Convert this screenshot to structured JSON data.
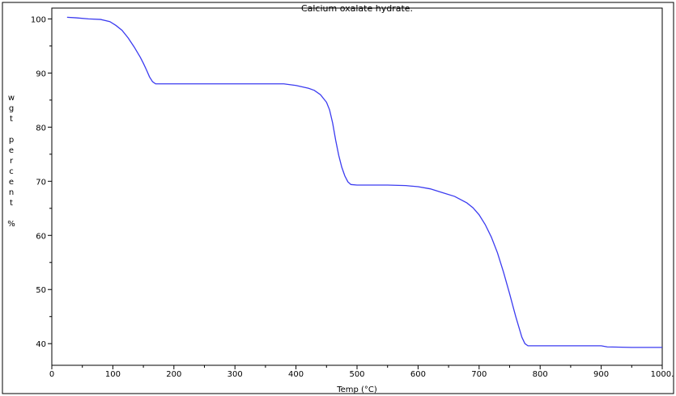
{
  "chart_data": {
    "type": "line",
    "title": "Calcium oxalate hydrate.",
    "xlabel": "Temp (°C)",
    "ylabel_chars": [
      "w",
      "g",
      "t",
      "",
      "p",
      "e",
      "r",
      "c",
      "e",
      "n",
      "t",
      "",
      "%"
    ],
    "xlim": [
      0,
      1000
    ],
    "ylim": [
      36,
      102
    ],
    "x_ticks": [
      0,
      100,
      200,
      300,
      400,
      500,
      600,
      700,
      800,
      900,
      1000
    ],
    "x_tick_labels": [
      "0",
      "100",
      "200",
      "300",
      "400",
      "500",
      "600",
      "700",
      "800",
      "900",
      "1000."
    ],
    "y_ticks": [
      40,
      50,
      60,
      70,
      80,
      90,
      100
    ],
    "y_tick_labels": [
      "40",
      "50",
      "60",
      "70",
      "80",
      "90",
      "100"
    ],
    "grid": false,
    "line_color": "#3b3bf0",
    "series": [
      {
        "x": [
          25,
          40,
          60,
          80,
          95,
          105,
          115,
          125,
          135,
          145,
          150,
          155,
          160,
          165,
          170,
          175,
          180,
          200,
          250,
          300,
          350,
          380,
          400,
          420,
          430,
          440,
          450,
          455,
          460,
          465,
          470,
          475,
          480,
          485,
          490,
          500,
          520,
          550,
          580,
          600,
          620,
          640,
          660,
          680,
          690,
          700,
          710,
          720,
          730,
          740,
          750,
          760,
          770,
          775,
          780,
          800,
          850,
          900,
          910,
          950,
          1000
        ],
        "y": [
          100.3,
          100.2,
          100.0,
          99.9,
          99.5,
          98.8,
          97.9,
          96.5,
          94.8,
          92.9,
          91.8,
          90.6,
          89.3,
          88.4,
          88.0,
          88.0,
          88.0,
          88.0,
          88.0,
          88.0,
          88.0,
          88.0,
          87.7,
          87.2,
          86.8,
          86.0,
          84.6,
          83.2,
          80.8,
          77.6,
          74.8,
          72.6,
          71.0,
          69.9,
          69.4,
          69.3,
          69.3,
          69.3,
          69.2,
          69.0,
          68.6,
          67.9,
          67.2,
          66.0,
          65.1,
          63.8,
          62.0,
          59.7,
          56.8,
          53.2,
          49.2,
          45.0,
          41.2,
          40.0,
          39.6,
          39.6,
          39.6,
          39.6,
          39.4,
          39.3,
          39.3
        ]
      }
    ]
  }
}
